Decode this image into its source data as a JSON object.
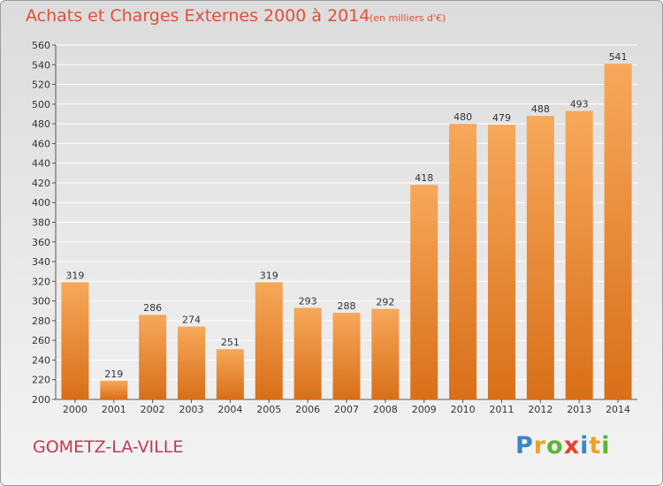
{
  "header": {
    "title": "Achats et Charges Externes 2000 à 2014",
    "subtitle": "(en milliers d'€)"
  },
  "footer": {
    "commune": "GOMETZ-LA-VILLE",
    "brand": "Proxiti",
    "brand_letters": [
      {
        "char": "P",
        "color": "#3a86c8"
      },
      {
        "char": "r",
        "color": "#f0a020"
      },
      {
        "char": "o",
        "color": "#62b234"
      },
      {
        "char": "x",
        "color": "#e8402c"
      },
      {
        "char": "i",
        "color": "#3a86c8"
      },
      {
        "char": "t",
        "color": "#f0a020"
      },
      {
        "char": "i",
        "color": "#62b234"
      }
    ]
  },
  "chart_data": {
    "type": "bar",
    "title": "Achats et Charges Externes 2000 à 2014",
    "subtitle": "(en milliers d'€)",
    "categories": [
      "2000",
      "2001",
      "2002",
      "2003",
      "2004",
      "2005",
      "2006",
      "2007",
      "2008",
      "2009",
      "2010",
      "2011",
      "2012",
      "2013",
      "2014"
    ],
    "values": [
      319,
      219,
      286,
      274,
      251,
      319,
      293,
      288,
      292,
      418,
      480,
      479,
      488,
      493,
      541
    ],
    "ylim": [
      200,
      560
    ],
    "yticks": [
      200,
      220,
      240,
      260,
      280,
      300,
      320,
      340,
      360,
      380,
      400,
      420,
      440,
      460,
      480,
      500,
      520,
      540,
      560
    ],
    "grid": true,
    "colors": {
      "bar_light": "#f7a85a",
      "bar_dark": "#d96f18",
      "grid": "#ffffff",
      "axis": "#555555"
    }
  }
}
